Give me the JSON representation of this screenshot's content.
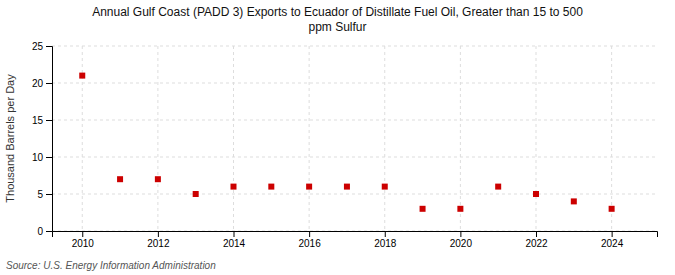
{
  "chart_data": {
    "type": "scatter",
    "title": "Annual Gulf Coast (PADD 3) Exports to Ecuador of Distillate Fuel Oil, Greater than 15 to 500\nppm Sulfur",
    "ylabel": "Thousand Barrels per Day",
    "source": "Source: U.S. Energy Information Administration",
    "x": [
      2010,
      2011,
      2012,
      2013,
      2014,
      2015,
      2016,
      2017,
      2018,
      2019,
      2020,
      2021,
      2022,
      2023,
      2024
    ],
    "values": [
      21.0,
      7.0,
      7.0,
      5.0,
      6.0,
      6.0,
      6.0,
      6.0,
      6.0,
      3.0,
      3.0,
      6.0,
      5.0,
      4.0,
      3.0
    ],
    "color": "#cc0000",
    "marker": "square",
    "xlim": [
      2009.2,
      2025.2
    ],
    "xticks": [
      2010,
      2012,
      2014,
      2016,
      2018,
      2020,
      2022,
      2024
    ],
    "ylim": [
      0,
      25
    ],
    "yticks": [
      0,
      5,
      10,
      15,
      20,
      25
    ],
    "grid": true
  }
}
